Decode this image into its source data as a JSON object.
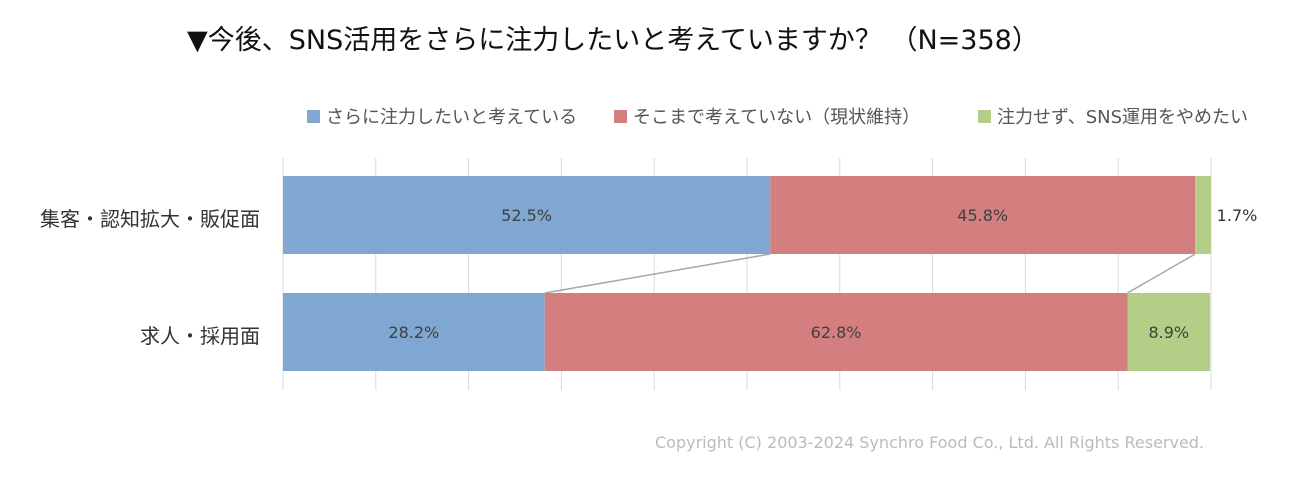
{
  "title": "▼今後、SNS活用をさらに注力したいと考えていますか？ （N=358）",
  "copyright": "Copyright (C) 2003-2024  Synchro Food Co., Ltd. All Rights Reserved.",
  "chart_data": {
    "type": "bar",
    "orientation": "horizontal",
    "stacked": "100%",
    "title": "▼今後、SNS活用をさらに注力したいと考えていますか？ （N=358）",
    "categories": [
      "集客・認知拡大・販促面",
      "求人・採用面"
    ],
    "series": [
      {
        "name": "さらに注力したいと考えている",
        "color": "#80a6d2",
        "values": [
          52.5,
          28.2
        ],
        "labels": [
          "52.5%",
          "28.2%"
        ]
      },
      {
        "name": "そこまで考えていない（現状維持）",
        "color": "#d47f7f",
        "values": [
          45.8,
          62.8
        ],
        "labels": [
          "45.8%",
          "62.8%"
        ]
      },
      {
        "name": "注力せず、SNS運用をやめたい",
        "color": "#b3ce87",
        "values": [
          1.7,
          8.9
        ],
        "labels": [
          "1.7%",
          "8.9%"
        ]
      }
    ],
    "xlim": [
      0,
      100
    ],
    "legend": "top",
    "grid": true,
    "series_lines": true
  }
}
